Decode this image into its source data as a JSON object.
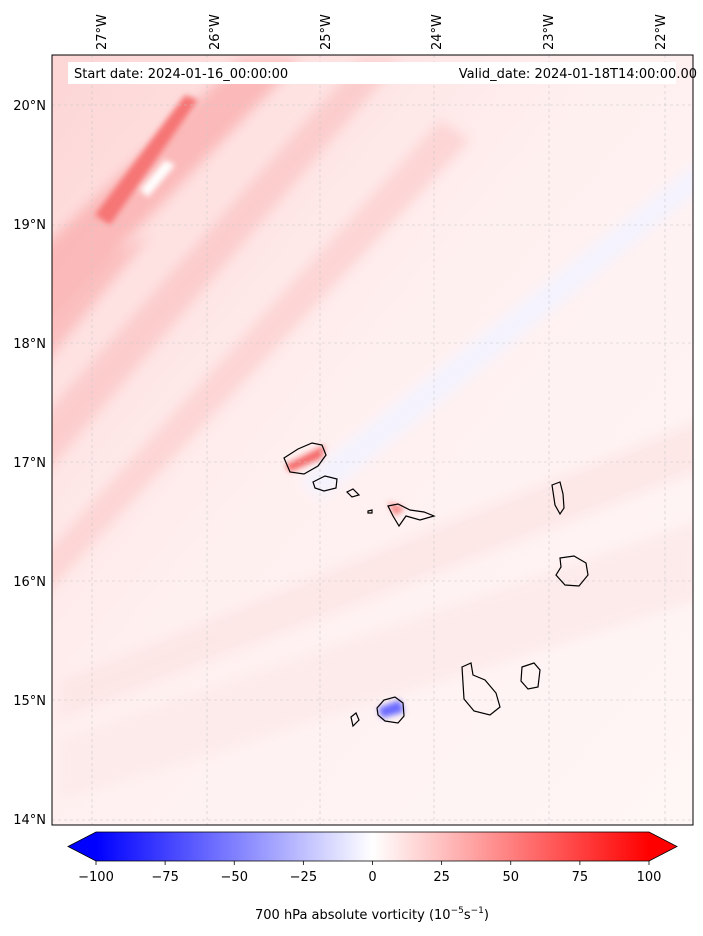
{
  "header": {
    "start_date": "Start date: 2024-01-16_00:00:00",
    "valid_date": "Valid_date: 2024-01-18T14:00:00.00"
  },
  "colorbar": {
    "label_text": "700 hPa absolute vorticity (10",
    "label_exp1": "−5",
    "label_mid": "s",
    "label_exp2": "−1",
    "label_end": ")",
    "min": -100,
    "max": 100,
    "ticks": [
      "−100",
      "−75",
      "−50",
      "−25",
      "0",
      "25",
      "50",
      "75",
      "100"
    ],
    "colors": {
      "low": "#0000ff",
      "mid": "#ffffff",
      "high": "#ff0000"
    }
  },
  "chart_data": {
    "type": "map",
    "map_field": "700 hPa absolute vorticity",
    "lon_range": [
      -27.35,
      -21.75
    ],
    "lat_range": [
      13.95,
      20.45
    ],
    "lon_ticks": [
      "27°W",
      "26°W",
      "25°W",
      "24°W",
      "23°W",
      "22°W"
    ],
    "lat_ticks": [
      "20°N",
      "19°N",
      "18°N",
      "17°N",
      "16°N",
      "15°N",
      "14°N"
    ],
    "grid": true
  },
  "colors": {
    "coastline": "#000000",
    "gridline": "#c8c8c8",
    "header_box": "#ffffff"
  }
}
